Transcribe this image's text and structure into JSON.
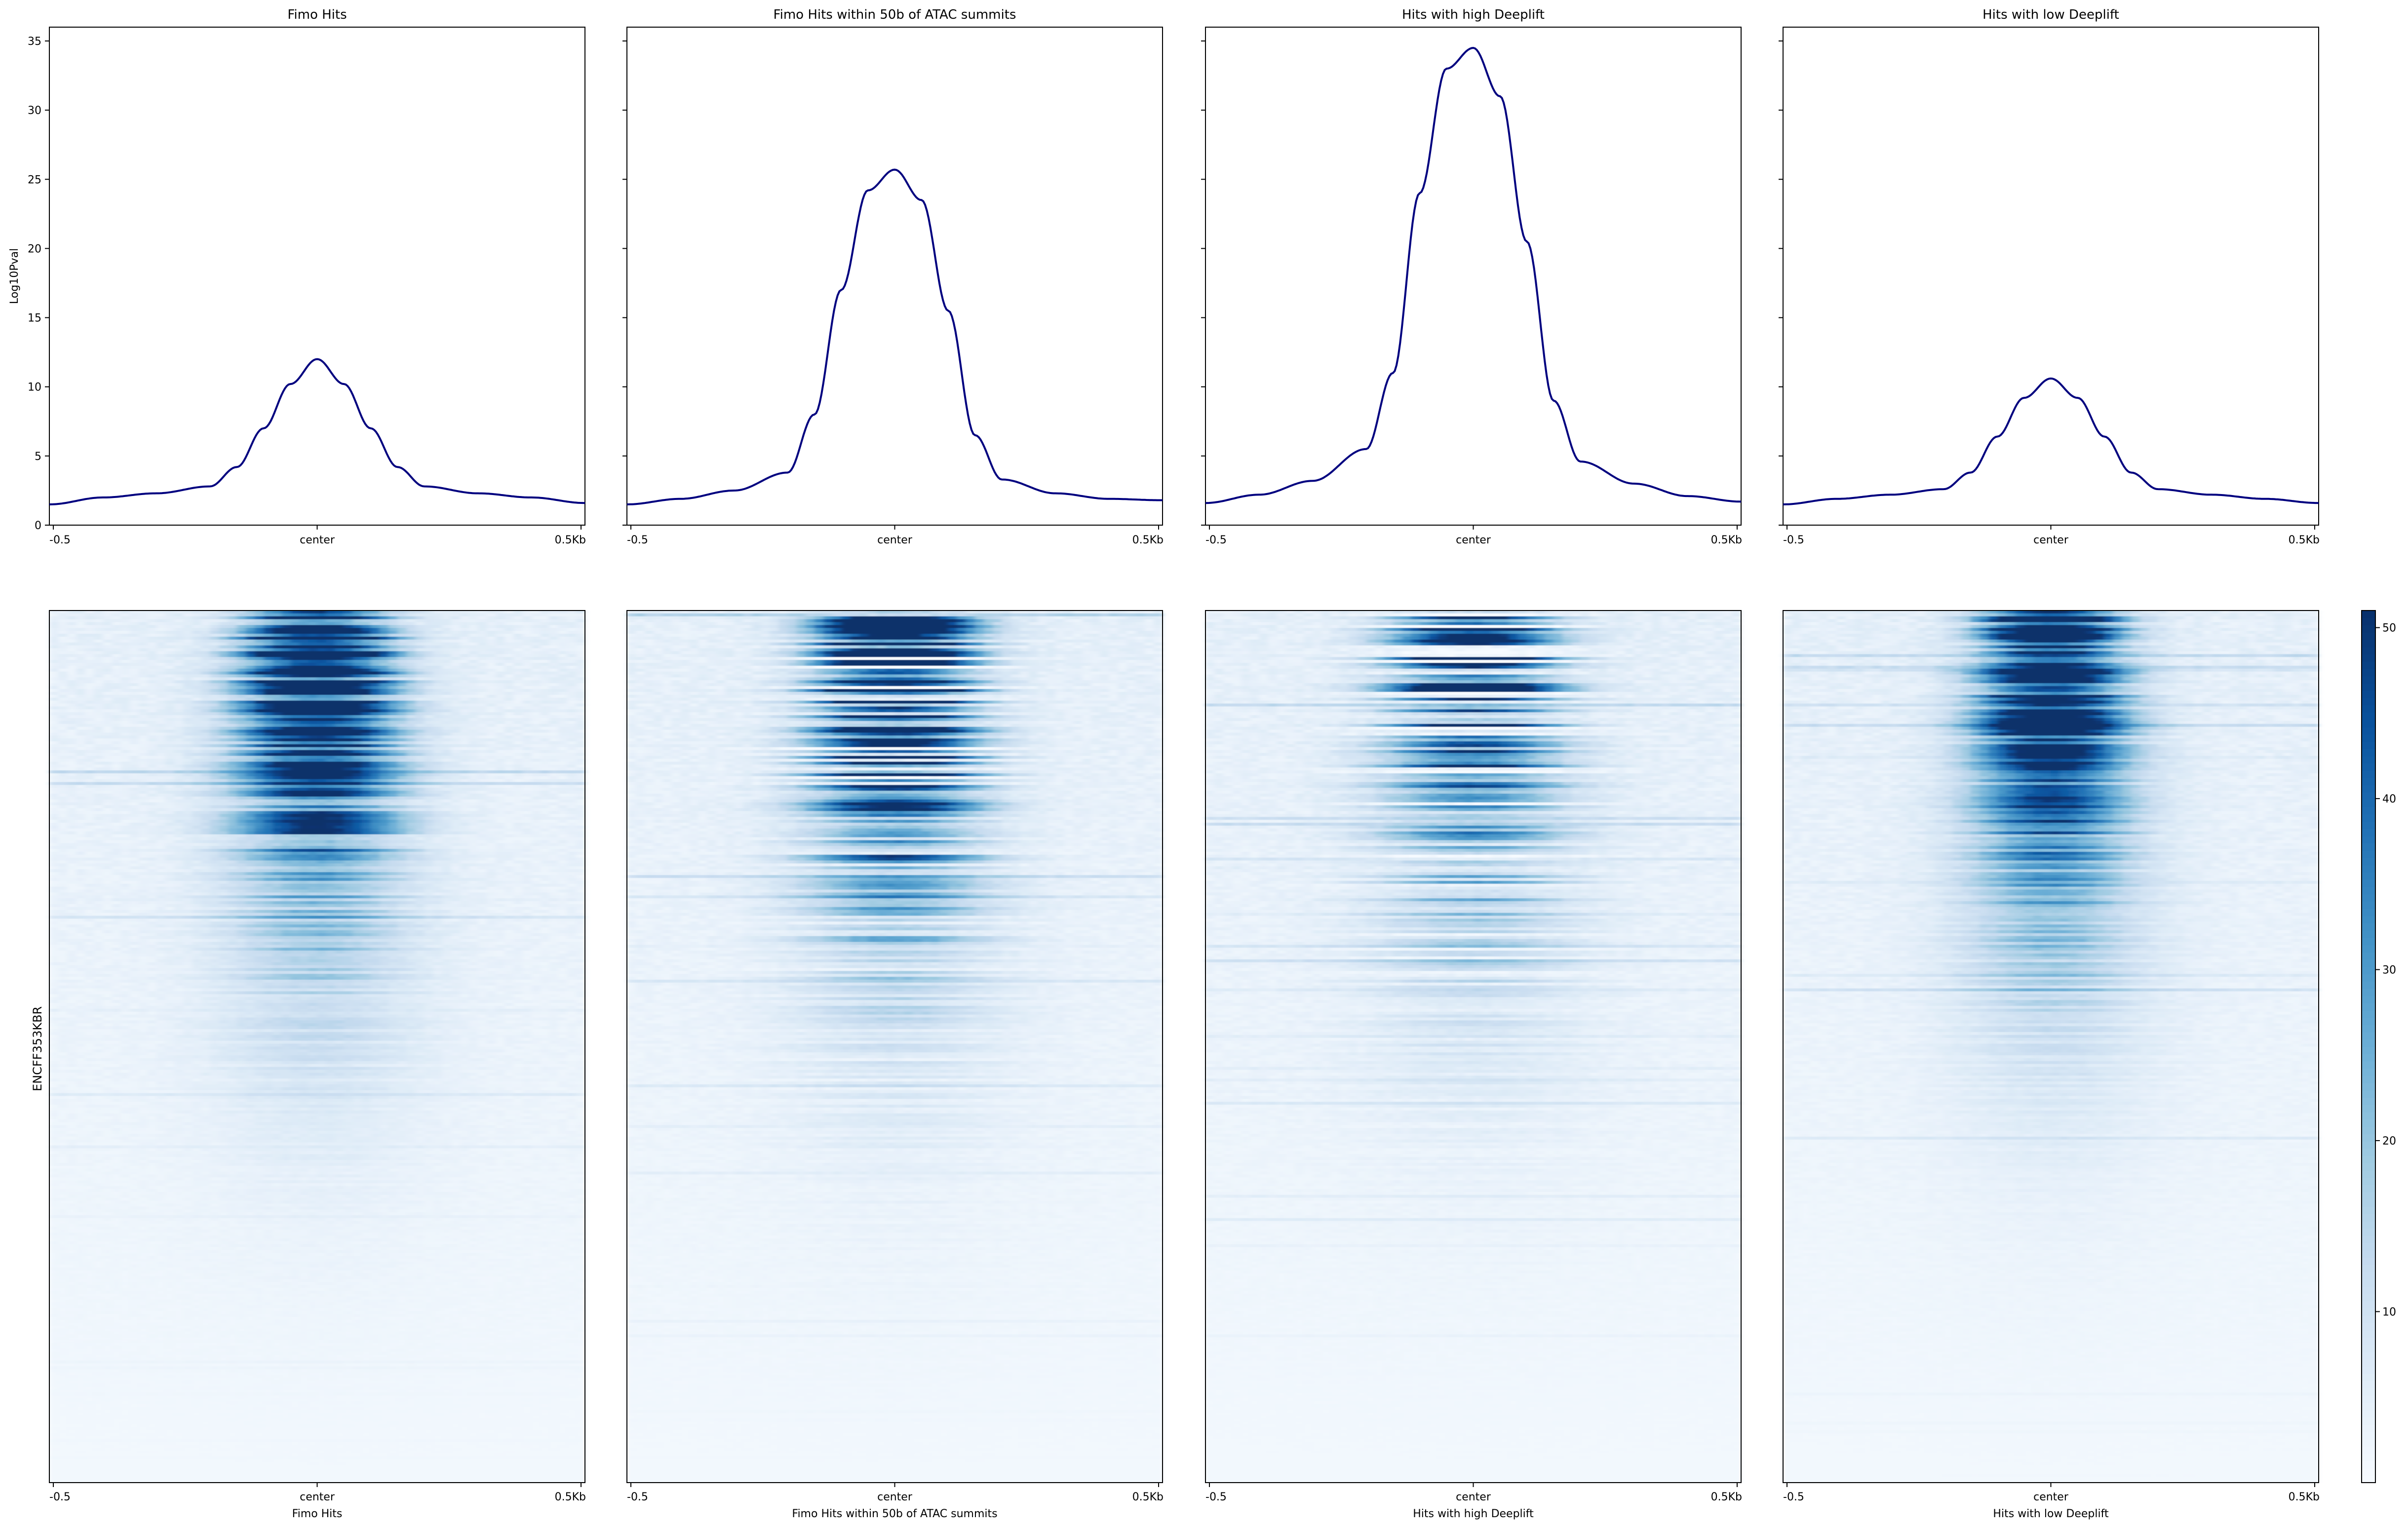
{
  "figure": {
    "row_label": "ENCFF353KBR",
    "colorbar_ticks": [
      10,
      20,
      30,
      40,
      50
    ],
    "colorbar_max": 51,
    "line_color": "#00007f",
    "heat_colors": [
      "#f7fbff",
      "#deebf7",
      "#c6dbef",
      "#9ecae1",
      "#6baed6",
      "#4292c6",
      "#2171b5",
      "#08519c",
      "#08306b"
    ]
  },
  "chart_data": [
    {
      "type": "line",
      "title": "Fimo Hits",
      "ylabel": "Log10Pval",
      "ylim": [
        0,
        36
      ],
      "yticks": [
        0,
        5,
        10,
        15,
        20,
        25,
        30,
        35
      ],
      "xlim": [
        -0.5,
        0.5
      ],
      "xtick_labels": [
        "-0.5",
        "center",
        "0.5Kb"
      ],
      "x": [
        -0.5,
        -0.4,
        -0.3,
        -0.2,
        -0.15,
        -0.1,
        -0.05,
        0,
        0.05,
        0.1,
        0.15,
        0.2,
        0.3,
        0.4,
        0.5
      ],
      "y": [
        1.5,
        2.0,
        2.3,
        2.8,
        4.2,
        7.0,
        10.2,
        12.0,
        10.2,
        7.0,
        4.2,
        2.8,
        2.3,
        2.0,
        1.6
      ],
      "xlabel": "Fimo Hits"
    },
    {
      "type": "line",
      "title": "Fimo Hits within 50b of ATAC summits",
      "ylabel": "",
      "ylim": [
        0,
        36
      ],
      "yticks": [
        0,
        5,
        10,
        15,
        20,
        25,
        30,
        35
      ],
      "xlim": [
        -0.5,
        0.5
      ],
      "xtick_labels": [
        "-0.5",
        "center",
        "0.5Kb"
      ],
      "x": [
        -0.5,
        -0.4,
        -0.3,
        -0.2,
        -0.15,
        -0.1,
        -0.05,
        0,
        0.05,
        0.1,
        0.15,
        0.2,
        0.3,
        0.4,
        0.5
      ],
      "y": [
        1.5,
        1.9,
        2.5,
        3.8,
        8.0,
        17.0,
        24.2,
        25.7,
        23.5,
        15.5,
        6.5,
        3.3,
        2.3,
        1.9,
        1.8
      ],
      "xlabel": "Fimo Hits within 50b of ATAC summits"
    },
    {
      "type": "line",
      "title": "Hits with high Deeplift",
      "ylabel": "",
      "ylim": [
        0,
        36
      ],
      "yticks": [
        0,
        5,
        10,
        15,
        20,
        25,
        30,
        35
      ],
      "xlim": [
        -0.5,
        0.5
      ],
      "xtick_labels": [
        "-0.5",
        "center",
        "0.5Kb"
      ],
      "x": [
        -0.5,
        -0.4,
        -0.3,
        -0.2,
        -0.15,
        -0.1,
        -0.05,
        0,
        0.05,
        0.1,
        0.15,
        0.2,
        0.3,
        0.4,
        0.5
      ],
      "y": [
        1.6,
        2.2,
        3.2,
        5.5,
        11.0,
        24.0,
        33.0,
        34.5,
        31.0,
        20.5,
        9.0,
        4.6,
        3.0,
        2.1,
        1.7
      ],
      "xlabel": "Hits with high Deeplift"
    },
    {
      "type": "line",
      "title": "Hits with low Deeplift",
      "ylabel": "",
      "ylim": [
        0,
        36
      ],
      "yticks": [
        0,
        5,
        10,
        15,
        20,
        25,
        30,
        35
      ],
      "xlim": [
        -0.5,
        0.5
      ],
      "xtick_labels": [
        "-0.5",
        "center",
        "0.5Kb"
      ],
      "x": [
        -0.5,
        -0.4,
        -0.3,
        -0.2,
        -0.15,
        -0.1,
        -0.05,
        0,
        0.05,
        0.1,
        0.15,
        0.2,
        0.3,
        0.4,
        0.5
      ],
      "y": [
        1.5,
        1.9,
        2.2,
        2.6,
        3.8,
        6.4,
        9.2,
        10.6,
        9.2,
        6.4,
        3.8,
        2.6,
        2.2,
        1.9,
        1.6
      ],
      "xlabel": "Hits with low Deeplift"
    }
  ]
}
